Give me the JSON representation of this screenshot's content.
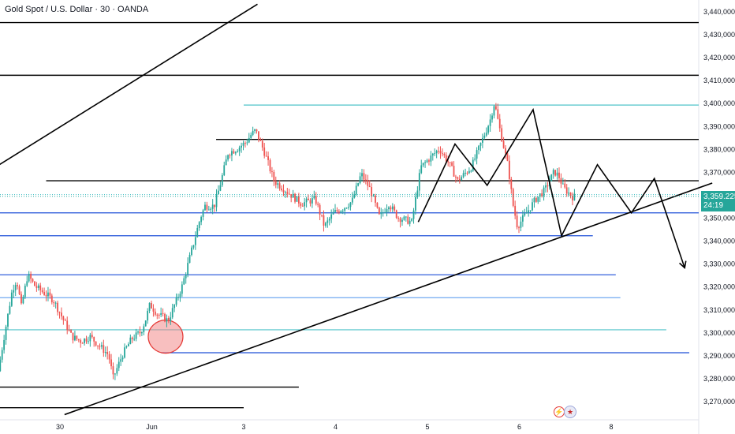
{
  "header": {
    "title": "Gold Spot / U.S. Dollar · 30 · OANDA"
  },
  "price_tag": {
    "price": "3,359.225",
    "countdown": "24:19"
  },
  "icons": {
    "event": "lightning-icon",
    "flag": "us-flag-icon"
  },
  "colors": {
    "up": "#26a69a",
    "down": "#ef5350",
    "support_blue": "#1e4fd8",
    "light_blue": "#6fa8f0",
    "cyan": "#4fc3c9",
    "black": "#000000",
    "ellipse": "#f28b8b"
  },
  "chart_data": {
    "type": "candlestick",
    "title": "Gold Spot / U.S. Dollar · 30 · OANDA",
    "y_ticks": [
      "3,440,000",
      "3,430,000",
      "3,420,000",
      "3,410,000",
      "3,400,000",
      "3,390,000",
      "3,380,000",
      "3,370,000",
      "3,360,000",
      "3,350,000",
      "3,340,000",
      "3,330,000",
      "3,320,000",
      "3,310,000",
      "3,300,000",
      "3,290,000",
      "3,280,000",
      "3,270,000"
    ],
    "y_tick_values": [
      3440,
      3430,
      3420,
      3410,
      3400,
      3390,
      3380,
      3370,
      3360,
      3350,
      3340,
      3330,
      3320,
      3310,
      3300,
      3290,
      3280,
      3270
    ],
    "ylim": [
      3266,
      3443
    ],
    "x_ticks": [
      "30",
      "Jun",
      "3",
      "4",
      "5",
      "6",
      "8"
    ],
    "x_tick_days": [
      0,
      1,
      2,
      3,
      4,
      5,
      6
    ],
    "last_price": 3359.225,
    "close_path": [
      [
        -0.65,
        3283
      ],
      [
        -0.6,
        3295
      ],
      [
        -0.5,
        3318
      ],
      [
        -0.45,
        3323
      ],
      [
        -0.4,
        3311
      ],
      [
        -0.33,
        3325
      ],
      [
        -0.25,
        3320
      ],
      [
        -0.15,
        3317
      ],
      [
        -0.05,
        3314
      ],
      [
        0.05,
        3306
      ],
      [
        0.15,
        3298
      ],
      [
        0.25,
        3296
      ],
      [
        0.35,
        3298
      ],
      [
        0.45,
        3294
      ],
      [
        0.55,
        3290
      ],
      [
        0.6,
        3280
      ],
      [
        0.7,
        3290
      ],
      [
        0.8,
        3297
      ],
      [
        0.9,
        3300
      ],
      [
        0.95,
        3305
      ],
      [
        1.0,
        3312
      ],
      [
        1.08,
        3308
      ],
      [
        1.2,
        3305
      ],
      [
        1.35,
        3320
      ],
      [
        1.45,
        3335
      ],
      [
        1.55,
        3350
      ],
      [
        1.6,
        3355
      ],
      [
        1.7,
        3355
      ],
      [
        1.75,
        3362
      ],
      [
        1.85,
        3378
      ],
      [
        1.95,
        3380
      ],
      [
        2.05,
        3383
      ],
      [
        2.1,
        3386
      ],
      [
        2.15,
        3388
      ],
      [
        2.25,
        3378
      ],
      [
        2.35,
        3366
      ],
      [
        2.5,
        3361
      ],
      [
        2.65,
        3356
      ],
      [
        2.8,
        3358
      ],
      [
        2.9,
        3346
      ],
      [
        3.0,
        3352
      ],
      [
        3.1,
        3354
      ],
      [
        3.2,
        3357
      ],
      [
        3.3,
        3369
      ],
      [
        3.4,
        3362
      ],
      [
        3.5,
        3350
      ],
      [
        3.6,
        3356
      ],
      [
        3.7,
        3350
      ],
      [
        3.85,
        3348
      ],
      [
        3.95,
        3372
      ],
      [
        4.05,
        3376
      ],
      [
        4.15,
        3380
      ],
      [
        4.25,
        3374
      ],
      [
        4.35,
        3366
      ],
      [
        4.5,
        3372
      ],
      [
        4.6,
        3382
      ],
      [
        4.7,
        3392
      ],
      [
        4.75,
        3400
      ],
      [
        4.8,
        3390
      ],
      [
        4.9,
        3372
      ],
      [
        4.95,
        3356
      ],
      [
        5.0,
        3346
      ],
      [
        5.1,
        3352
      ],
      [
        5.2,
        3358
      ],
      [
        5.3,
        3362
      ],
      [
        5.4,
        3370
      ],
      [
        5.45,
        3368
      ],
      [
        5.5,
        3363
      ],
      [
        5.6,
        3359
      ]
    ],
    "horizontal_levels": [
      {
        "price": 3435,
        "x_start": -0.7,
        "x_end": 7.0,
        "color": "black"
      },
      {
        "price": 3412,
        "x_start": -0.7,
        "x_end": 7.0,
        "color": "black"
      },
      {
        "price": 3399,
        "x_start": 2.0,
        "x_end": 7.0,
        "color": "cyan"
      },
      {
        "price": 3384,
        "x_start": 1.7,
        "x_end": 7.0,
        "color": "black"
      },
      {
        "price": 3366,
        "x_start": -0.15,
        "x_end": 7.0,
        "color": "black"
      },
      {
        "price": 3360,
        "x_start": -0.7,
        "x_end": 7.0,
        "color": "cyan_dotted"
      },
      {
        "price": 3352,
        "x_start": -0.7,
        "x_end": 7.0,
        "color": "support_blue"
      },
      {
        "price": 3342,
        "x_start": -0.7,
        "x_end": 5.8,
        "color": "support_blue"
      },
      {
        "price": 3325,
        "x_start": -0.7,
        "x_end": 6.05,
        "color": "support_blue"
      },
      {
        "price": 3315,
        "x_start": -0.7,
        "x_end": 6.1,
        "color": "light_blue"
      },
      {
        "price": 3301,
        "x_start": -0.7,
        "x_end": 6.6,
        "color": "cyan"
      },
      {
        "price": 3291,
        "x_start": 1.1,
        "x_end": 6.85,
        "color": "support_blue"
      },
      {
        "price": 3276,
        "x_start": -0.7,
        "x_end": 2.6,
        "color": "black"
      },
      {
        "price": 3267,
        "x_start": -0.7,
        "x_end": 2.0,
        "color": "black"
      }
    ],
    "trend_lines": [
      {
        "from": [
          -0.7,
          3372
        ],
        "to": [
          2.15,
          3443
        ]
      },
      {
        "from": [
          0.05,
          3264
        ],
        "to": [
          7.1,
          3365
        ]
      }
    ],
    "pattern_path": [
      [
        3.9,
        3348
      ],
      [
        4.3,
        3382
      ],
      [
        4.65,
        3364
      ],
      [
        5.15,
        3397
      ],
      [
        5.46,
        3342
      ],
      [
        5.85,
        3373
      ],
      [
        6.22,
        3352
      ],
      [
        6.47,
        3367
      ],
      [
        6.8,
        3328
      ]
    ],
    "ellipse_center": [
      1.15,
      3298
    ]
  }
}
